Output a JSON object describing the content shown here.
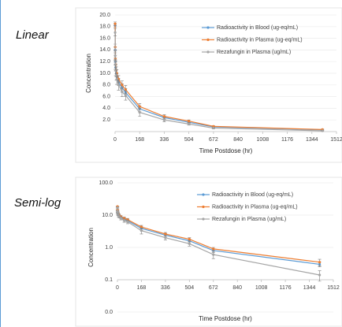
{
  "chart_data": [
    {
      "type": "line",
      "panel_label": "Linear",
      "y_label": "Concentration",
      "x_label": "Time Postdose (hr)",
      "ylog": false,
      "x": [
        0.5,
        1,
        2,
        4,
        8,
        12,
        24,
        48,
        72,
        168,
        336,
        504,
        672,
        1416
      ],
      "xlim": [
        0,
        1512
      ],
      "xticks": [
        0,
        168,
        336,
        504,
        672,
        840,
        1008,
        1176,
        1344,
        1512
      ],
      "ylim": [
        0,
        20
      ],
      "yticks": [
        {
          "value": 2,
          "label": "2.0"
        },
        {
          "value": 4,
          "label": "4.0"
        },
        {
          "value": 6,
          "label": "6.0"
        },
        {
          "value": 8,
          "label": "8.0"
        },
        {
          "value": 10,
          "label": "10.0"
        },
        {
          "value": 12,
          "label": "12.0"
        },
        {
          "value": 14,
          "label": "14.0"
        },
        {
          "value": 16,
          "label": "16.0"
        },
        {
          "value": 18,
          "label": "18.0"
        },
        {
          "value": 20,
          "label": "20.0"
        }
      ],
      "grid": true,
      "series": [
        {
          "name": "Radioactivity in Blood (ug-eq/mL)",
          "color": "#5b9bd5",
          "values": [
            18.2,
            14,
            12,
            11,
            10,
            9.5,
            8.5,
            7.5,
            6.7,
            3.9,
            2.4,
            1.6,
            0.8,
            0.3
          ],
          "errors": [
            0.3,
            0.5,
            0.6,
            0.6,
            0.6,
            0.6,
            0.6,
            0.7,
            0.7,
            0.5,
            0.3,
            0.2,
            0.1,
            0.05
          ]
        },
        {
          "name": "Radioactivity in Plasma (ug-eq/mL)",
          "color": "#ed7d31",
          "values": [
            18.5,
            14.5,
            12.5,
            11.5,
            10.5,
            10,
            9,
            8,
            7.2,
            4.3,
            2.6,
            1.8,
            0.9,
            0.35
          ],
          "errors": [
            0.3,
            0.5,
            0.6,
            0.6,
            0.6,
            0.6,
            0.6,
            0.7,
            0.7,
            0.5,
            0.3,
            0.2,
            0.1,
            0.08
          ]
        },
        {
          "name": "Rezafungin in Plasma (ug/mL)",
          "color": "#a5a5a5",
          "values": [
            17,
            13,
            11.5,
            10.5,
            9.7,
            9,
            8,
            6.8,
            6.2,
            3.3,
            2,
            1.3,
            0.6,
            0.14
          ],
          "errors": [
            0.6,
            0.8,
            0.9,
            0.9,
            0.9,
            0.9,
            0.9,
            0.8,
            0.8,
            0.7,
            0.3,
            0.2,
            0.15,
            0.05
          ]
        }
      ]
    },
    {
      "type": "line",
      "panel_label": "Semi-log",
      "y_label": "Concentration",
      "x_label": "Time Postdose (hr)",
      "ylog": true,
      "x": [
        0.5,
        1,
        2,
        4,
        8,
        12,
        24,
        48,
        72,
        168,
        336,
        504,
        672,
        1416
      ],
      "xlim": [
        0,
        1512
      ],
      "xticks": [
        0,
        168,
        336,
        504,
        672,
        840,
        1008,
        1176,
        1344,
        1512
      ],
      "ylim": [
        0.01,
        100
      ],
      "yticks": [
        {
          "value": 0.01,
          "label": "0.0"
        },
        0.1,
        {
          "value": 1,
          "label": "1.0"
        },
        {
          "value": 10,
          "label": "10.0"
        },
        {
          "value": 100,
          "label": "100.0"
        }
      ],
      "x_axis_at": 0.1,
      "grid": true,
      "series": [
        {
          "name": "Radioactivity in Blood (ug-eq/mL)",
          "color": "#5b9bd5",
          "values": [
            18.2,
            14,
            12,
            11,
            10,
            9.5,
            8.5,
            7.5,
            6.7,
            3.9,
            2.4,
            1.6,
            0.8,
            0.3
          ],
          "errors": [
            0.3,
            0.5,
            0.6,
            0.6,
            0.6,
            0.6,
            0.6,
            0.7,
            0.7,
            0.5,
            0.3,
            0.2,
            0.1,
            0.05
          ]
        },
        {
          "name": "Radioactivity in Plasma (ug-eq/mL)",
          "color": "#ed7d31",
          "values": [
            18.5,
            14.5,
            12.5,
            11.5,
            10.5,
            10,
            9,
            8,
            7.2,
            4.3,
            2.6,
            1.8,
            0.9,
            0.35
          ],
          "errors": [
            0.3,
            0.5,
            0.6,
            0.6,
            0.6,
            0.6,
            0.6,
            0.7,
            0.7,
            0.5,
            0.3,
            0.2,
            0.1,
            0.08
          ]
        },
        {
          "name": "Rezafungin in Plasma (ug/mL)",
          "color": "#a5a5a5",
          "values": [
            17,
            13,
            11.5,
            10.5,
            9.7,
            9,
            8,
            6.8,
            6.2,
            3.3,
            2,
            1.3,
            0.6,
            0.14
          ],
          "errors": [
            0.6,
            0.8,
            0.9,
            0.9,
            0.9,
            0.9,
            0.9,
            0.8,
            0.8,
            0.7,
            0.3,
            0.2,
            0.15,
            0.05
          ]
        }
      ]
    }
  ]
}
